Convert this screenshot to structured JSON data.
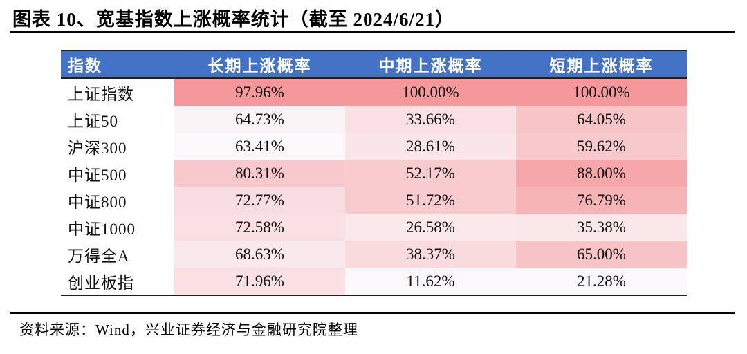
{
  "title": "图表 10、宽基指数上涨概率统计（截至 2024/6/21）",
  "source_note": "资料来源：Wind，兴业证券经济与金融研究院整理",
  "colors": {
    "header_bg": "#4472C4",
    "header_text": "#FFFFFF",
    "border_dark": "#1F1F1F",
    "heat_low": "#FBF8FB",
    "heat_high": "#F4989B",
    "name_cell_bg": "#FFFFFF",
    "value_text": "#111111"
  },
  "chart_data": {
    "type": "heatmap",
    "title": "宽基指数上涨概率统计（截至 2024/6/21）",
    "columns": [
      "指数",
      "长期上涨概率",
      "中期上涨概率",
      "短期上涨概率"
    ],
    "rows": [
      {
        "name": "上证指数",
        "values": [
          "97.96%",
          "100.00%",
          "100.00%"
        ]
      },
      {
        "name": "上证50",
        "values": [
          "64.73%",
          "33.66%",
          "64.05%"
        ]
      },
      {
        "name": "沪深300",
        "values": [
          "63.41%",
          "28.61%",
          "59.62%"
        ]
      },
      {
        "name": "中证500",
        "values": [
          "80.31%",
          "52.17%",
          "88.00%"
        ]
      },
      {
        "name": "中证800",
        "values": [
          "72.77%",
          "51.72%",
          "76.79%"
        ]
      },
      {
        "name": "中证1000",
        "values": [
          "72.58%",
          "26.58%",
          "35.38%"
        ]
      },
      {
        "name": "万得全A",
        "values": [
          "68.63%",
          "38.37%",
          "65.00%"
        ]
      },
      {
        "name": "创业板指",
        "values": [
          "71.96%",
          "11.62%",
          "21.28%"
        ]
      }
    ],
    "value_format": "percent",
    "legend": "none",
    "heatmap_scale": "column-wise linear: column min -> heat_low, column max -> heat_high"
  }
}
